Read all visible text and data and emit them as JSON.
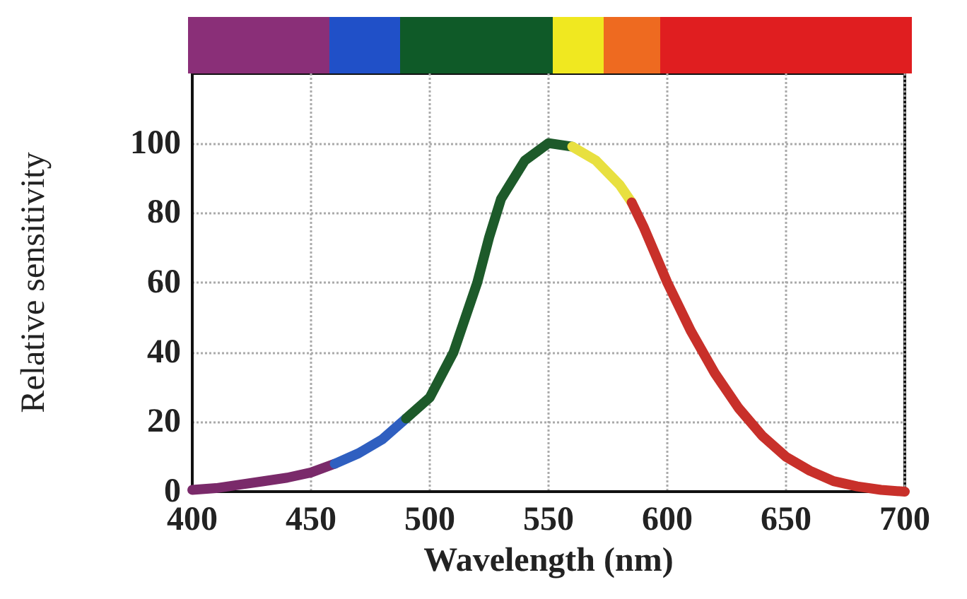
{
  "chart_data": {
    "type": "line",
    "xlabel": "Wavelength (nm)",
    "ylabel": "Relative sensitivity",
    "xlim": [
      400,
      700
    ],
    "xticks": [
      400,
      450,
      500,
      550,
      600,
      650,
      700
    ],
    "ylim": [
      0,
      120
    ],
    "yticks": [
      0,
      20,
      40,
      60,
      80,
      100
    ],
    "grid": true,
    "line_style": "solid",
    "series": [
      {
        "color": "#7a2a6a",
        "x": [
          400,
          410,
          420,
          430,
          440,
          450,
          460
        ],
        "values": [
          0.5,
          1,
          2,
          3,
          4,
          5.5,
          8
        ]
      },
      {
        "color": "#2f5fc0",
        "x": [
          460,
          470,
          480,
          490
        ],
        "values": [
          8,
          11,
          15,
          21
        ]
      },
      {
        "color": "#1d5a2a",
        "x": [
          490,
          500,
          510,
          520,
          525,
          530,
          540,
          550,
          560
        ],
        "values": [
          21,
          27,
          40,
          60,
          73,
          84,
          95,
          100,
          99
        ]
      },
      {
        "color": "#e8e040",
        "x": [
          560,
          570,
          580,
          585
        ],
        "values": [
          99,
          95,
          88,
          83
        ]
      },
      {
        "color": "#c8302a",
        "x": [
          585,
          590,
          600,
          610,
          620,
          630,
          640,
          650,
          660,
          670,
          680,
          690,
          700
        ],
        "values": [
          83,
          76,
          60,
          46,
          34,
          24,
          16,
          10,
          6,
          3,
          1.5,
          0.5,
          0
        ]
      }
    ]
  }
}
